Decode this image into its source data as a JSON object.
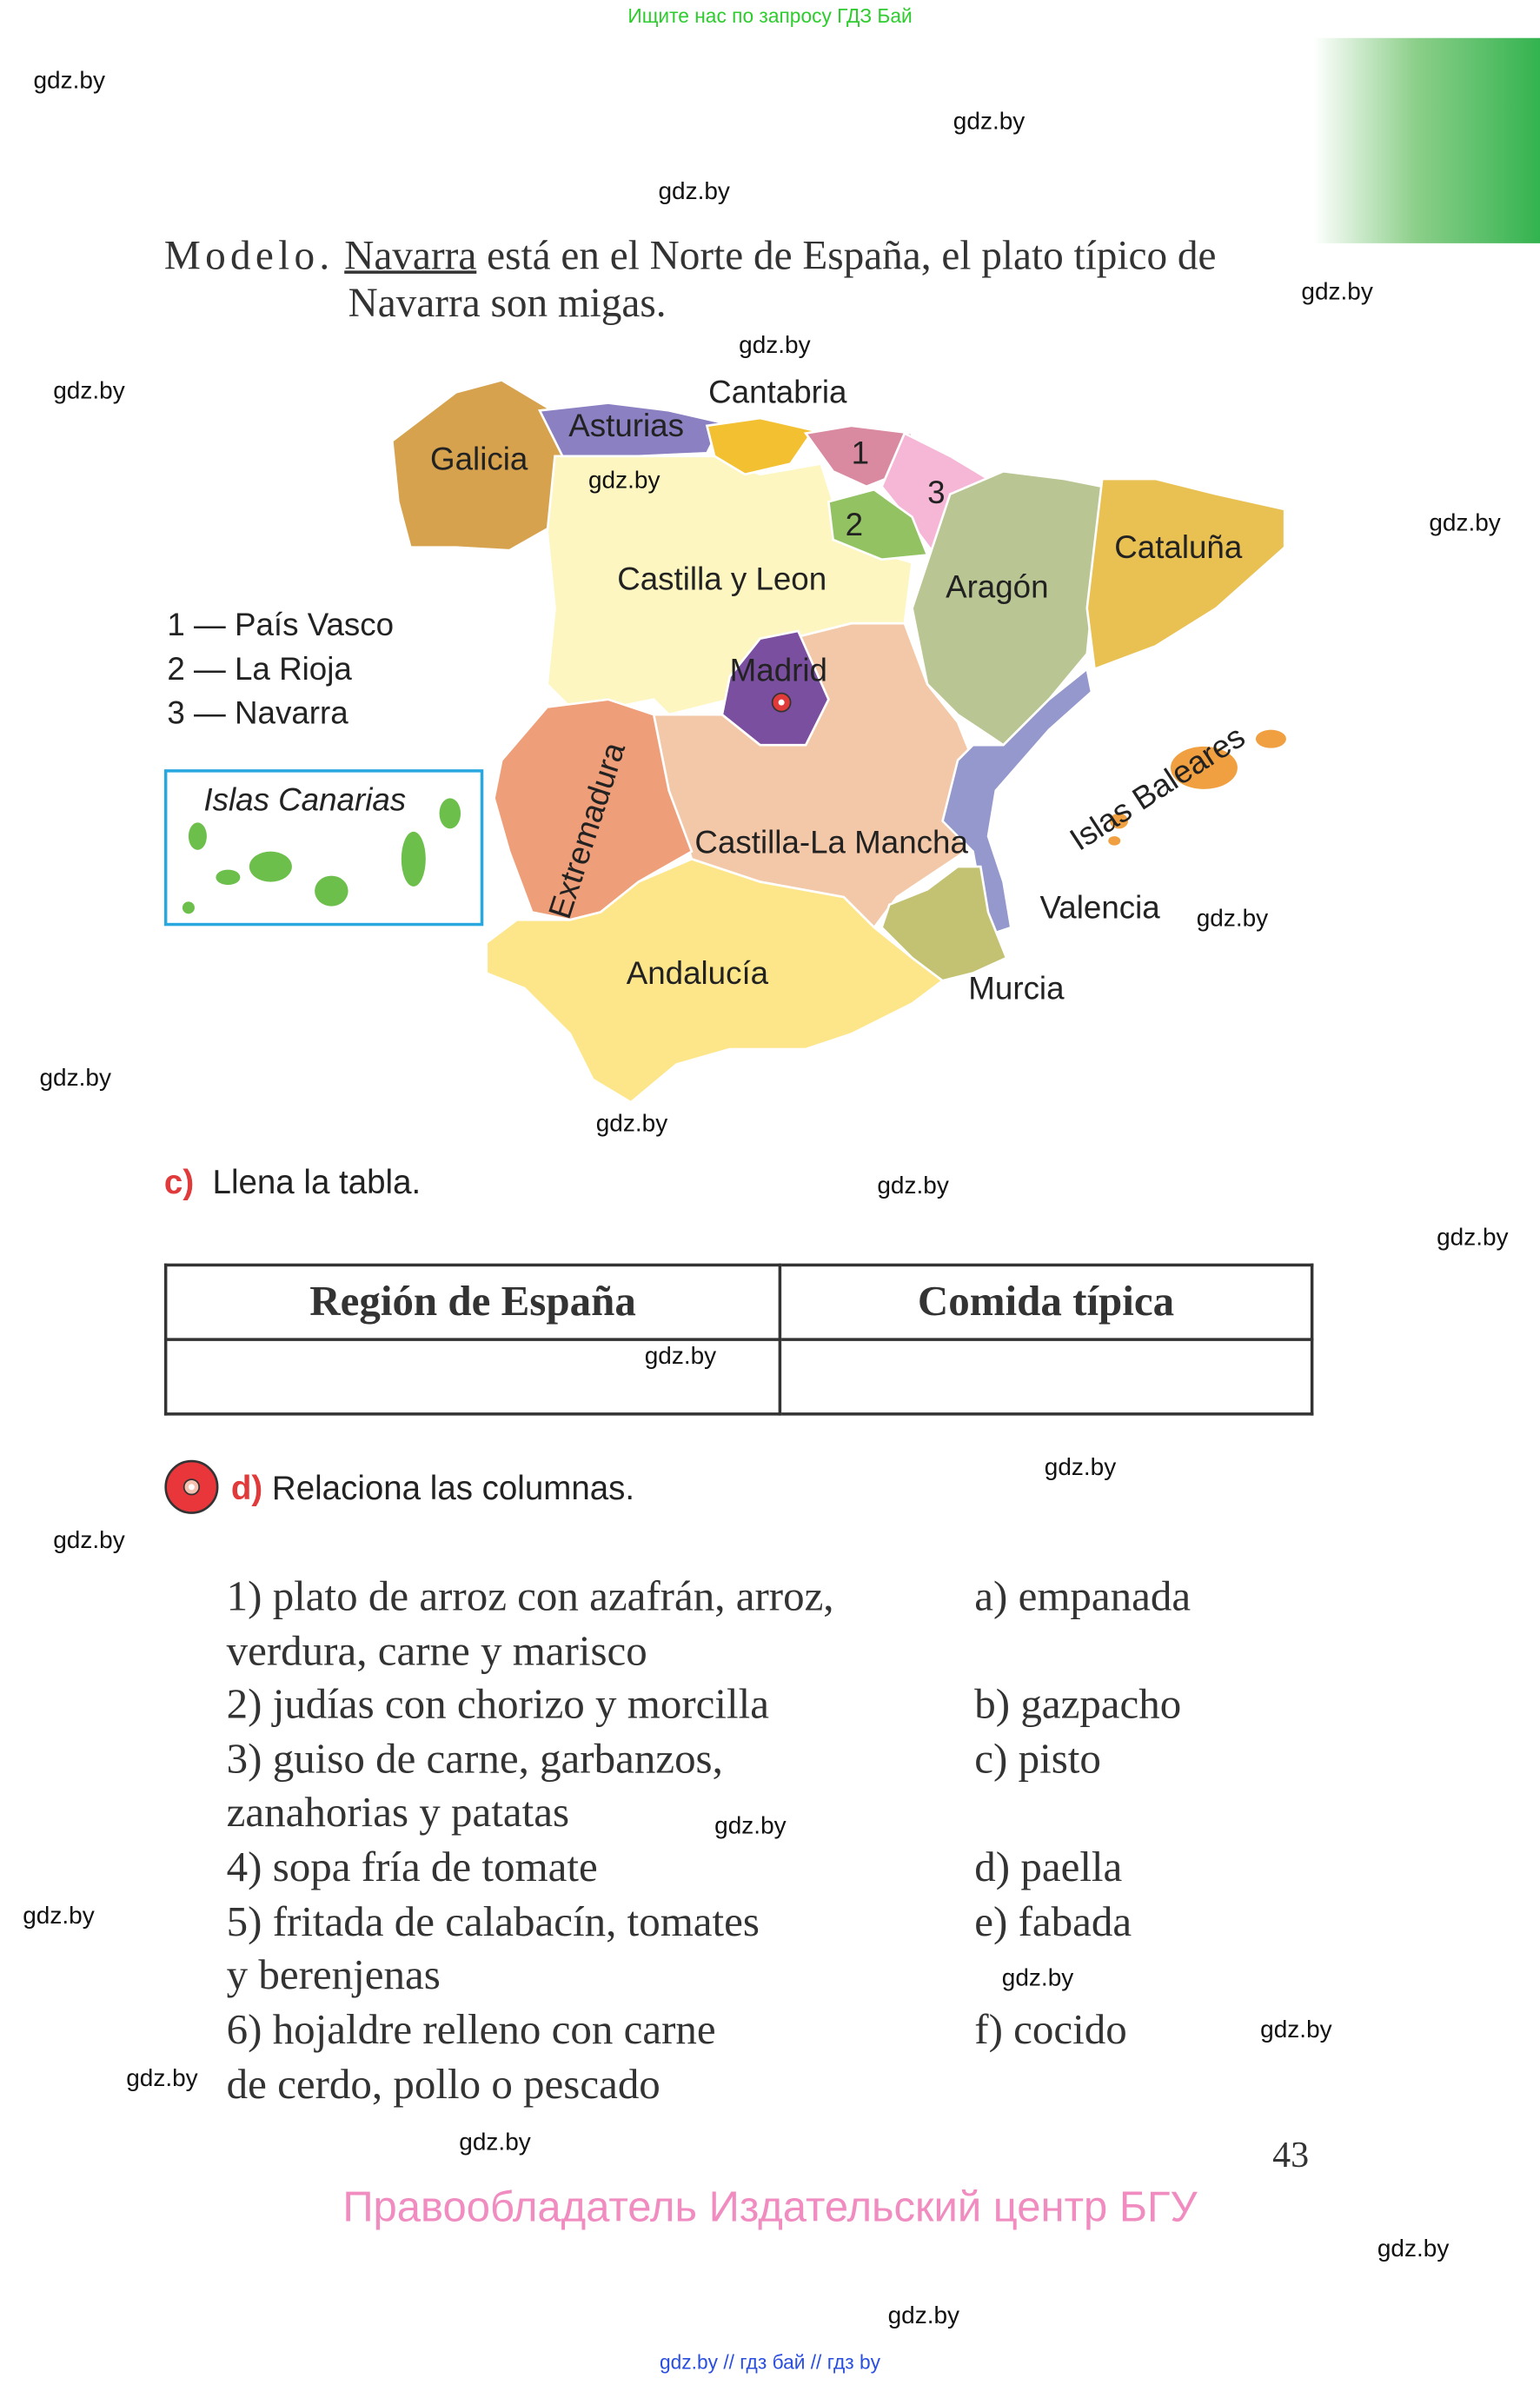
{
  "banner": "Ищите нас по запросу ГДЗ Бай",
  "watermark": "gdz.by",
  "modelo": {
    "label": "Modelo.",
    "region": "Navarra",
    "line1_rest": " está en el Norte de España, el plato típico de",
    "line2": "Navarra son migas."
  },
  "map": {
    "regions": [
      "Galicia",
      "Asturias",
      "Cantabria",
      "1",
      "2",
      "3",
      "Castilla y Leon",
      "Aragón",
      "Cataluña",
      "Madrid",
      "Extremadura",
      "Castilla-La Mancha",
      "Islas Baleares",
      "Valencia",
      "Murcia",
      "Andalucía"
    ],
    "canarias": "Islas Canarias",
    "legend": [
      "1 — País Vasco",
      "2 — La Rioja",
      "3 — Navarra"
    ]
  },
  "task_c": {
    "letter": "c)",
    "text": "Llena la tabla."
  },
  "table": {
    "headers": [
      "Región de España",
      "Comida típica"
    ],
    "rows": [
      [
        "",
        ""
      ]
    ]
  },
  "task_d": {
    "letter": "d)",
    "text": "Relaciona las columnas."
  },
  "left_items": [
    "1) plato de arroz con azafrán, arroz,",
    "verdura, carne y marisco",
    "2) judías con chorizo y morcilla",
    "3) guiso de carne, garbanzos,",
    "zanahorias y patatas",
    "4) sopa fría de tomate",
    "5) fritada de calabacín, tomates",
    "y berenjenas",
    "6) hojaldre relleno con carne",
    "de cerdo, pollo o pescado"
  ],
  "right_items": [
    "a) empanada",
    "b) gazpacho",
    "c) pisto",
    "d) paella",
    "e) fabada",
    "f) cocido"
  ],
  "page_number": "43",
  "publisher": "Правообладатель Издательский центр БГУ",
  "footer": "gdz.by  //  гдз бай  //  гдз by",
  "colors": {
    "accent_red": "#e03a3a",
    "publisher_pink": "#f08cc0",
    "banner_green": "#2ecc2e",
    "footer_blue": "#2a4fe0"
  }
}
